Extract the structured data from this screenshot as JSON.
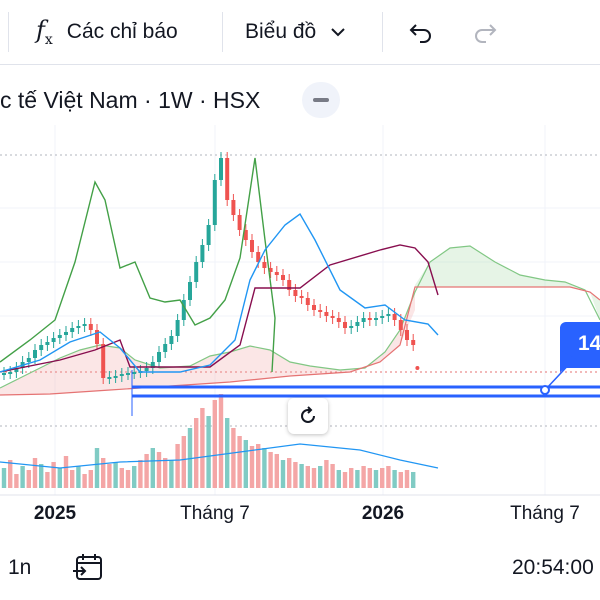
{
  "toolbar": {
    "indicators_label": "Các chỉ báo",
    "chart_type_label": "Biểu đồ"
  },
  "legend": {
    "title": "c tế Việt Nam · 1W · HSX"
  },
  "price_tag": {
    "text": "14"
  },
  "x_axis": {
    "labels": [
      "2025",
      "Tháng 7",
      "2026",
      "Tháng 7"
    ]
  },
  "bottom": {
    "interval": "1n",
    "clock": "20:54:00"
  },
  "colors": {
    "up": "#26a69a",
    "down": "#ef5350",
    "accent": "#2962ff",
    "chikou": "#43a047",
    "tenkan": "#2196f3",
    "kijun": "#880e4f"
  },
  "icons": [
    "fx-icon",
    "chevron-down-icon",
    "undo-icon",
    "redo-icon",
    "collapse-icon",
    "reset-icon",
    "goto-date-icon"
  ]
}
